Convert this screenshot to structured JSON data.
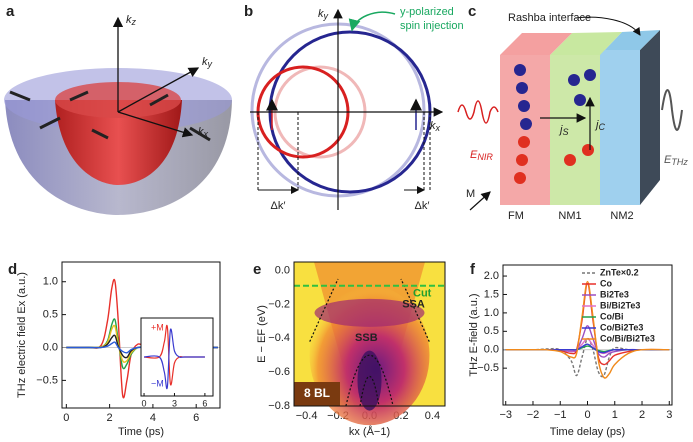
{
  "diagrams": {
    "a": {
      "panel": "a",
      "kz": {
        "main": "k",
        "sub": "z"
      },
      "ky": {
        "main": "k",
        "sub": "y"
      },
      "kx": {
        "main": "k",
        "sub": "x"
      }
    },
    "b": {
      "panel": "b",
      "ky": {
        "main": "k",
        "sub": "y"
      },
      "kx": {
        "main": "k",
        "sub": "x"
      },
      "note": [
        "y-polarized",
        "spin injection"
      ],
      "dk_left": "Δk′",
      "dk_right": "Δk′"
    },
    "c": {
      "panel": "c",
      "interface": "Rashba interface",
      "enir": {
        "main": "E",
        "sub": "NIR"
      },
      "ethz": {
        "main": "E",
        "sub": "THz"
      },
      "js": {
        "main": "j",
        "sub": "S"
      },
      "jc": {
        "main": "j",
        "sub": "C"
      },
      "m": "M",
      "layers": [
        "FM",
        "NM1",
        "NM2"
      ]
    }
  },
  "chart_data": [
    {
      "type": "line",
      "panel": "d",
      "ylabel": "THz electric field Ex (a.u.)",
      "xlabel": "Time (ps)",
      "xlim": [
        -0.2,
        7.1
      ],
      "xticks": [
        0,
        2,
        4,
        6
      ],
      "ylim": [
        -0.92,
        1.3
      ],
      "yticks": [
        {
          "value": -0.5,
          "label": "−0.5"
        },
        {
          "value": 0,
          "label": "0.0"
        },
        {
          "value": 0.5,
          "label": "0.5"
        },
        {
          "value": 1,
          "label": "1.0"
        }
      ],
      "x": [
        0,
        1,
        1.6,
        1.9,
        2.1,
        2.25,
        2.4,
        2.6,
        2.8,
        3.0,
        3.3,
        3.6,
        4,
        5,
        6,
        7
      ],
      "series": [
        {
          "color": "#e8302a",
          "values": [
            0,
            0,
            0.03,
            0.4,
            0.9,
            1.0,
            0.4,
            -0.72,
            -0.5,
            -0.1,
            0.05,
            0.02,
            0,
            0,
            0,
            0
          ]
        },
        {
          "color": "#22a14a",
          "values": [
            0,
            0,
            0.01,
            0.1,
            0.35,
            0.42,
            0.1,
            -0.3,
            -0.25,
            -0.1,
            0,
            0,
            0,
            0,
            0,
            0
          ]
        },
        {
          "color": "#e8c020",
          "values": [
            0,
            0,
            0.01,
            0.08,
            0.28,
            0.32,
            0.05,
            -0.2,
            -0.2,
            -0.08,
            0,
            0,
            0,
            0,
            0,
            0
          ]
        },
        {
          "color": "#222222",
          "values": [
            0,
            0,
            0,
            0.05,
            0.15,
            0.18,
            0.02,
            -0.12,
            -0.15,
            -0.05,
            0,
            0,
            0,
            0,
            0,
            0
          ]
        },
        {
          "color": "#2a5bd7",
          "values": [
            0,
            0,
            0,
            0.02,
            0.06,
            0.08,
            0,
            -0.06,
            -0.08,
            -0.03,
            0,
            0,
            0,
            0,
            0,
            0
          ]
        }
      ],
      "inset": {
        "xlim": [
          -0.3,
          6.8
        ],
        "xticks": [
          0,
          3,
          6
        ],
        "ylim": [
          -1.3,
          1.3
        ],
        "x": [
          0,
          1.5,
          2,
          2.3,
          2.6,
          3,
          3.5,
          4,
          6
        ],
        "series": [
          {
            "name": "+M",
            "color": "#e8302a",
            "values": [
              0,
              0,
              0.5,
              1,
              -0.9,
              -0.2,
              0,
              0,
              0
            ]
          },
          {
            "name": "−M",
            "color": "#3a3ad0",
            "values": [
              0,
              0,
              -0.5,
              -1,
              0.9,
              0.2,
              0,
              0,
              0
            ]
          }
        ]
      }
    },
    {
      "type": "band_map",
      "panel": "e",
      "ylabel": "E − EF (eV)",
      "xlabel": "kx (Å−1)",
      "xlim": [
        -0.48,
        0.48
      ],
      "xticks": [
        {
          "value": -0.4,
          "label": "−0.4"
        },
        {
          "value": -0.2,
          "label": "−0.2"
        },
        {
          "value": 0,
          "label": "0.0"
        },
        {
          "value": 0.2,
          "label": "0.2"
        },
        {
          "value": 0.4,
          "label": "0.4"
        }
      ],
      "ylim": [
        -0.8,
        0.05
      ],
      "yticks": [
        {
          "value": -0.8,
          "label": "−0.8"
        },
        {
          "value": -0.6,
          "label": "−0.6"
        },
        {
          "value": -0.4,
          "label": "−0.4"
        },
        {
          "value": -0.2,
          "label": "−0.2"
        },
        {
          "value": 0,
          "label": "0.0"
        }
      ],
      "cut": -0.09,
      "cut_label": "Cut",
      "labels": [
        "SSA",
        "SSB"
      ],
      "sample": "8 BL"
    },
    {
      "type": "line",
      "panel": "f",
      "ylabel": "THz E-field (a.u.)",
      "xlabel": "Time delay (ps)",
      "xlim": [
        -3.1,
        3.1
      ],
      "xticks": [
        {
          "value": -3,
          "label": "−3"
        },
        {
          "value": -2,
          "label": "−2"
        },
        {
          "value": -1,
          "label": "−1"
        },
        0,
        1,
        2,
        3
      ],
      "ylim": [
        -1.5,
        2.3
      ],
      "yticks": [
        {
          "value": -0.5,
          "label": "−0.5"
        },
        {
          "value": 0,
          "label": "0.0"
        },
        {
          "value": 0.5,
          "label": "0.5"
        },
        {
          "value": 1,
          "label": "1.0"
        },
        {
          "value": 1.5,
          "label": "1.5"
        },
        {
          "value": 2,
          "label": "2.0"
        }
      ],
      "legend": "upper right",
      "x": [
        -3,
        -2,
        -1.5,
        -1,
        -0.6,
        -0.4,
        -0.2,
        0,
        0.2,
        0.4,
        0.6,
        0.8,
        1,
        1.5,
        2,
        3
      ],
      "series": [
        {
          "name": "ZnTe×0.2",
          "color": "#777777",
          "dashed": true,
          "values": [
            0,
            0,
            0.02,
            0,
            -0.3,
            -0.7,
            -0.2,
            0.3,
            0,
            -0.6,
            -0.7,
            -0.2,
            0.05,
            0,
            0,
            0
          ]
        },
        {
          "name": "Co",
          "color": "#e8302a",
          "values": [
            0,
            0,
            0,
            -0.02,
            -0.1,
            0,
            0.8,
            1.8,
            0.8,
            -0.2,
            -0.4,
            -0.3,
            -0.15,
            -0.05,
            0,
            0
          ]
        },
        {
          "name": "Bi2Te3",
          "color": "#9b4fc0",
          "values": [
            0,
            0,
            0,
            0,
            -0.05,
            0,
            0.3,
            0.65,
            0.3,
            -0.1,
            -0.2,
            -0.1,
            -0.05,
            0,
            0,
            0
          ]
        },
        {
          "name": "Bi/Bi2Te3",
          "color": "#e070c8",
          "values": [
            0,
            0,
            0,
            0,
            -0.03,
            0,
            0.15,
            0.3,
            0.12,
            -0.05,
            -0.1,
            -0.05,
            0,
            0,
            0,
            0
          ]
        },
        {
          "name": "Co/Bi",
          "color": "#22a14a",
          "values": [
            0,
            0,
            0,
            0,
            0,
            0,
            0.05,
            0.1,
            0.05,
            -0.02,
            -0.05,
            -0.02,
            0,
            0,
            0,
            0
          ]
        },
        {
          "name": "Co/Bi2Te3",
          "color": "#3a3ad0",
          "values": [
            0,
            0,
            0,
            0,
            0,
            0,
            0.08,
            0.15,
            0.05,
            -0.05,
            -0.08,
            -0.03,
            0,
            0,
            0,
            0
          ]
        },
        {
          "name": "Co/Bi/Bi2Te3",
          "color": "#f08a1c",
          "values": [
            0,
            0,
            0,
            -0.05,
            -0.2,
            -0.1,
            0.9,
            1.85,
            0.9,
            -0.3,
            -0.75,
            -0.65,
            -0.4,
            -0.1,
            0,
            0
          ]
        }
      ]
    }
  ]
}
